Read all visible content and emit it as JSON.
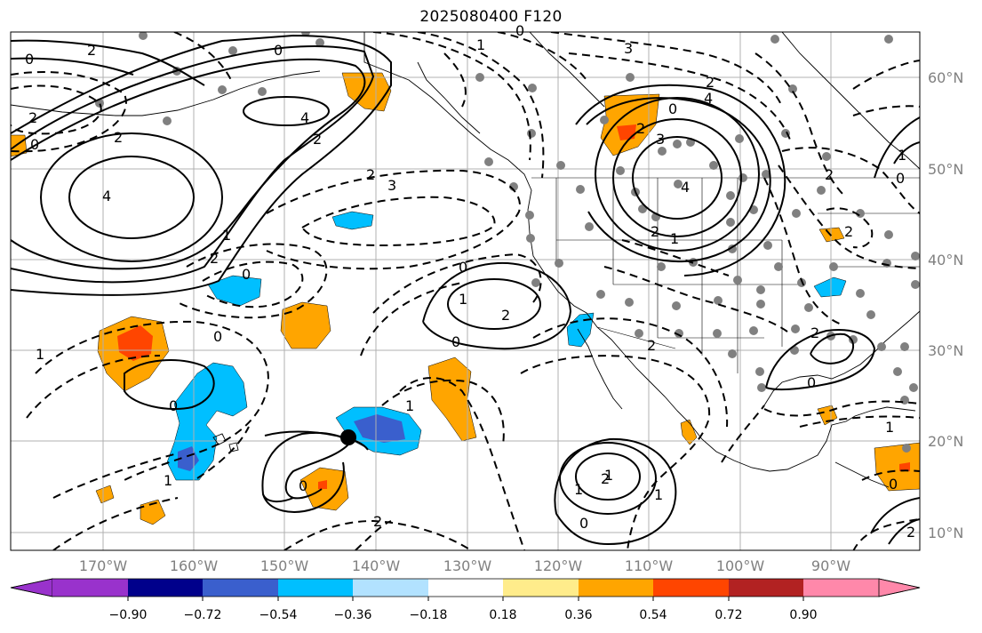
{
  "title": "2025080400 F120",
  "lat_labels": [
    "60°N",
    "50°N",
    "40°N",
    "30°N",
    "20°N",
    "10°N"
  ],
  "lon_labels": [
    "170°W",
    "160°W",
    "150°W",
    "140°W",
    "130°W",
    "120°W",
    "110°W",
    "100°W",
    "90°W"
  ],
  "colorbar": {
    "ticks": [
      "−0.90",
      "−0.72",
      "−0.54",
      "−0.36",
      "−0.18",
      "0.18",
      "0.36",
      "0.54",
      "0.72",
      "0.90"
    ],
    "colors": [
      "#9932cc",
      "#00008b",
      "#3a5fcd",
      "#00bfff",
      "#b2e2ff",
      "#ffffff",
      "#ffec8b",
      "#ffa500",
      "#ff4500",
      "#b22222",
      "#ff88aa"
    ]
  },
  "contour_labels": [
    "0",
    "2",
    "4",
    "2",
    "0",
    "2",
    "4",
    "1",
    "2",
    "3",
    "0",
    "1",
    "2",
    "2",
    "3",
    "2",
    "4",
    "2",
    "0",
    "2",
    "3",
    "4",
    "2",
    "1",
    "0",
    "1",
    "2",
    "0",
    "0",
    "2",
    "0",
    "1",
    "1",
    "0",
    "1",
    "2",
    "1",
    "0",
    "2",
    "1",
    "0",
    "2",
    "1",
    "0",
    "2",
    "1",
    "0",
    "2",
    "0",
    "0",
    "1"
  ],
  "colors": {
    "grid": "#b0b0b0",
    "axis_label": "#808080",
    "station": "#808080"
  }
}
